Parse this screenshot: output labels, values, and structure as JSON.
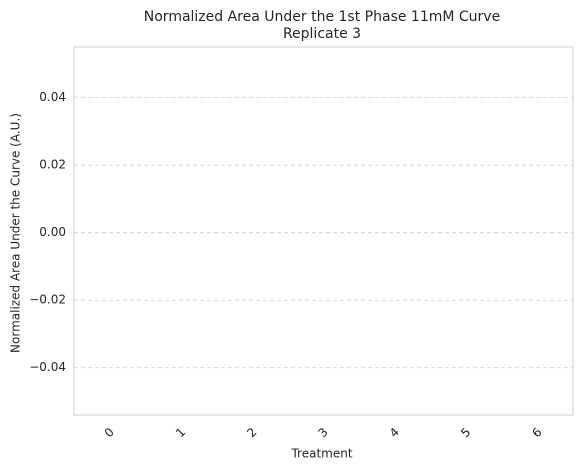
{
  "chart_data": {
    "type": "bar",
    "title": "Normalized Area Under the 1st Phase 11mM Curve",
    "subtitle": "Replicate 3",
    "x_label": "Treatment",
    "y_label": "Normalized Area Under the Curve (A.U.)",
    "categories": [
      "0",
      "1",
      "2",
      "3",
      "4",
      "5",
      "6"
    ],
    "color": "#4c72b0",
    "ylim": [
      -0.054,
      0.055
    ],
    "yticks": [
      {
        "value": -0.04,
        "label": "−0.04"
      },
      {
        "value": -0.02,
        "label": "−0.02"
      },
      {
        "value": 0,
        "label": "0.00"
      },
      0.02,
      0.04
    ],
    "grid": true
  }
}
